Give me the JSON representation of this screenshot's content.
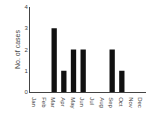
{
  "chart_data": {
    "type": "bar",
    "categories": [
      "Jan",
      "Feb",
      "Mar",
      "Apr",
      "May",
      "Jun",
      "Jul",
      "Aug",
      "Sep",
      "Oct",
      "Nov",
      "Dec"
    ],
    "values": [
      0,
      0,
      3,
      1,
      2,
      2,
      0,
      0,
      2,
      1,
      0,
      0
    ],
    "color": "#111111",
    "ylabel": "No. of cases",
    "ylim": [
      0,
      4
    ],
    "yticks": [
      0,
      1,
      2,
      3,
      4
    ],
    "grid": false
  }
}
